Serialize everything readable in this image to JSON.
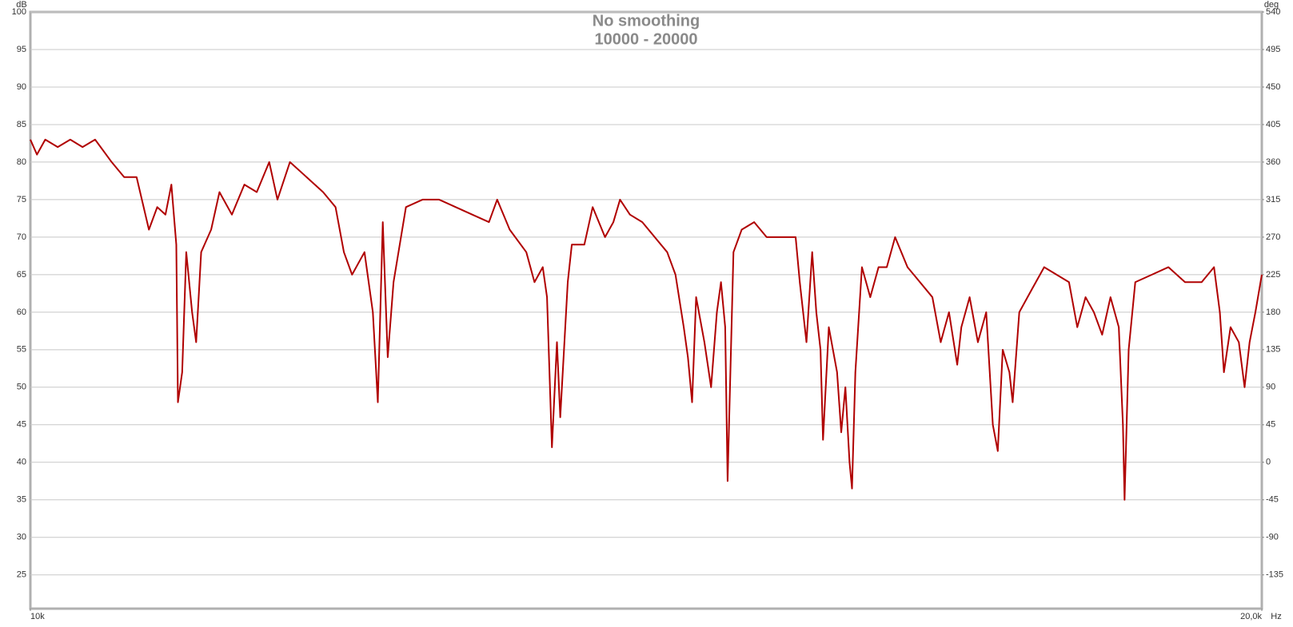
{
  "chart_data": {
    "type": "line",
    "title": "No smoothing",
    "subtitle": "10000 - 20000",
    "y_unit": "dB",
    "y2_unit": "deg",
    "x_unit": "Hz",
    "x_log": true,
    "grid": true,
    "color": "#b00000",
    "xlim": [
      10000,
      20000
    ],
    "xticks": [
      {
        "value": 10000,
        "label": "10k"
      },
      {
        "value": 20000,
        "label": "20,0k"
      }
    ],
    "ylim": [
      20.5,
      100
    ],
    "yticks": [
      100,
      95,
      90,
      85,
      80,
      75,
      70,
      65,
      60,
      55,
      50,
      45,
      40,
      35,
      30,
      25
    ],
    "y2lim": [
      -175.5,
      540
    ],
    "y2ticks": [
      540,
      495,
      450,
      405,
      360,
      315,
      270,
      225,
      180,
      135,
      90,
      45,
      0,
      -45,
      -90,
      -135
    ],
    "x": [
      10000,
      10037,
      10084,
      10155,
      10227,
      10298,
      10371,
      10468,
      10542,
      10616,
      10690,
      10740,
      10790,
      10826,
      10856,
      10866,
      10892,
      10917,
      10953,
      10978,
      11009,
      11071,
      11123,
      11201,
      11280,
      11359,
      11439,
      11492,
      11573,
      11682,
      11791,
      11874,
      11930,
      11985,
      12069,
      12126,
      12160,
      12194,
      12228,
      12268,
      12354,
      12470,
      12587,
      12705,
      12824,
      12945,
      13005,
      13097,
      13220,
      13281,
      13343,
      13375,
      13412,
      13450,
      13475,
      13532,
      13563,
      13659,
      13723,
      13819,
      13884,
      13936,
      14014,
      14112,
      14211,
      14311,
      14378,
      14445,
      14479,
      14513,
      14546,
      14614,
      14669,
      14717,
      14751,
      14786,
      14806,
      14855,
      14924,
      15029,
      15135,
      15277,
      15384,
      15420,
      15478,
      15528,
      15564,
      15601,
      15623,
      15674,
      15747,
      15784,
      15821,
      15858,
      15880,
      15910,
      15969,
      16044,
      16119,
      16194,
      16270,
      16384,
      16499,
      16615,
      16693,
      16771,
      16849,
      16888,
      16967,
      17046,
      17126,
      17190,
      17238,
      17286,
      17351,
      17383,
      17448,
      17570,
      17694,
      17818,
      17943,
      18027,
      18111,
      18196,
      18281,
      18367,
      18453,
      18496,
      18513,
      18556,
      18625,
      18800,
      18976,
      19154,
      19334,
      19469,
      19533,
      19578,
      19651,
      19743,
      19807,
      19863,
      19928,
      20000
    ],
    "values": [
      83,
      81,
      83,
      82,
      83,
      82,
      83,
      80,
      78,
      78,
      71,
      74,
      73,
      77,
      69,
      48,
      52,
      68,
      60,
      56,
      68,
      71,
      76,
      73,
      77,
      76,
      80,
      75,
      80,
      78,
      76,
      74,
      68,
      65,
      68,
      60,
      48,
      72,
      54,
      64,
      74,
      75,
      75,
      74,
      73,
      72,
      75,
      71,
      68,
      64,
      66,
      62,
      42,
      56,
      46,
      64,
      69,
      69,
      74,
      70,
      72,
      75,
      73,
      72,
      70,
      68,
      65,
      58,
      54,
      48,
      62,
      56,
      50,
      60,
      64,
      58,
      37.5,
      68,
      71,
      72,
      70,
      70,
      70,
      64,
      56,
      68,
      60,
      55,
      43,
      58,
      52,
      44,
      50,
      40,
      36.5,
      52,
      66,
      62,
      66,
      66,
      70,
      66,
      64,
      62,
      56,
      60,
      53,
      58,
      62,
      56,
      60,
      45,
      41.5,
      55,
      52,
      48,
      60,
      63,
      66,
      65,
      64,
      58,
      62,
      60,
      57,
      62,
      58,
      45,
      35,
      55,
      64,
      65,
      66,
      64,
      64,
      66,
      60,
      52,
      58,
      56,
      50,
      56,
      60,
      65
    ]
  }
}
